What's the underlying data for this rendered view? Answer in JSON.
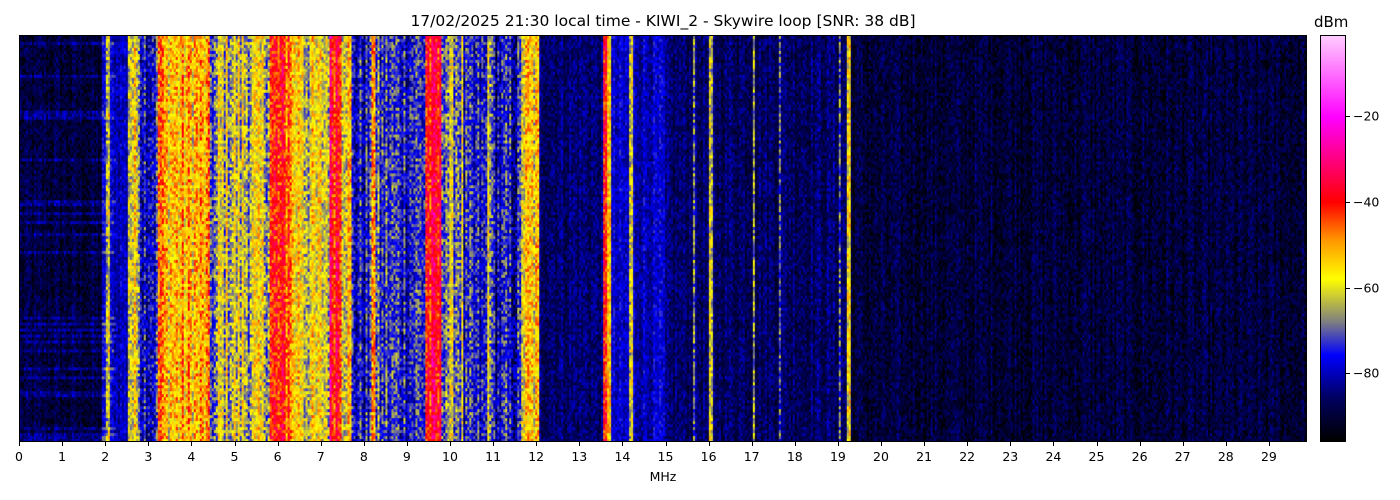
{
  "chart_data": {
    "type": "heatmap",
    "title": "17/02/2025 21:30 local time - KIWI_2 - Skywire loop [SNR: 38 dB]",
    "xlabel": "MHz",
    "ylabel": "",
    "xlim": [
      0,
      29.9
    ],
    "x_ticks": [
      "0",
      "1",
      "2",
      "3",
      "4",
      "5",
      "6",
      "7",
      "8",
      "9",
      "10",
      "11",
      "12",
      "13",
      "14",
      "15",
      "16",
      "17",
      "18",
      "19",
      "20",
      "21",
      "22",
      "23",
      "24",
      "25",
      "26",
      "27",
      "28",
      "29"
    ],
    "colorbar": {
      "label": "dBm",
      "range": [
        -96,
        -1
      ],
      "ticks": [
        -20,
        -40,
        -60,
        -80
      ],
      "tick_labels": [
        "−20",
        "−40",
        "−60",
        "−80"
      ],
      "colormap": [
        {
          "dbm": -96,
          "color": "#000000"
        },
        {
          "dbm": -86,
          "color": "#000060"
        },
        {
          "dbm": -76,
          "color": "#0000ff"
        },
        {
          "dbm": -68,
          "color": "#808080"
        },
        {
          "dbm": -58,
          "color": "#ffff00"
        },
        {
          "dbm": -49,
          "color": "#ff9900"
        },
        {
          "dbm": -40,
          "color": "#ff0000"
        },
        {
          "dbm": -20,
          "color": "#ff00ff"
        },
        {
          "dbm": -1,
          "color": "#ffccff"
        }
      ]
    },
    "band_levels_dbm": [
      {
        "from_mhz": 0,
        "to_mhz": 1.9,
        "dbm": -90
      },
      {
        "from_mhz": 1.9,
        "to_mhz": 2.5,
        "dbm": -80
      },
      {
        "from_mhz": 2.5,
        "to_mhz": 2.8,
        "dbm": -60
      },
      {
        "from_mhz": 2.8,
        "to_mhz": 3.2,
        "dbm": -75
      },
      {
        "from_mhz": 3.2,
        "to_mhz": 3.3,
        "dbm": -45
      },
      {
        "from_mhz": 3.3,
        "to_mhz": 4.4,
        "dbm": -53
      },
      {
        "from_mhz": 4.4,
        "to_mhz": 4.6,
        "dbm": -70
      },
      {
        "from_mhz": 4.6,
        "to_mhz": 5.8,
        "dbm": -62
      },
      {
        "from_mhz": 5.8,
        "to_mhz": 6.3,
        "dbm": -43
      },
      {
        "from_mhz": 6.3,
        "to_mhz": 6.6,
        "dbm": -55
      },
      {
        "from_mhz": 6.6,
        "to_mhz": 7.2,
        "dbm": -60
      },
      {
        "from_mhz": 7.2,
        "to_mhz": 7.45,
        "dbm": -37
      },
      {
        "from_mhz": 7.45,
        "to_mhz": 7.7,
        "dbm": -56
      },
      {
        "from_mhz": 7.7,
        "to_mhz": 8.15,
        "dbm": -77
      },
      {
        "from_mhz": 8.15,
        "to_mhz": 8.25,
        "dbm": -45
      },
      {
        "from_mhz": 8.25,
        "to_mhz": 9.4,
        "dbm": -74
      },
      {
        "from_mhz": 9.4,
        "to_mhz": 9.8,
        "dbm": -40
      },
      {
        "from_mhz": 9.8,
        "to_mhz": 10.3,
        "dbm": -66
      },
      {
        "from_mhz": 10.3,
        "to_mhz": 11.65,
        "dbm": -78
      },
      {
        "from_mhz": 11.65,
        "to_mhz": 12.05,
        "dbm": -57
      },
      {
        "from_mhz": 12.05,
        "to_mhz": 13.55,
        "dbm": -85
      },
      {
        "from_mhz": 13.55,
        "to_mhz": 13.75,
        "dbm": -50
      },
      {
        "from_mhz": 13.75,
        "to_mhz": 15.0,
        "dbm": -80
      },
      {
        "from_mhz": 15.0,
        "to_mhz": 19.2,
        "dbm": -86
      },
      {
        "from_mhz": 19.2,
        "to_mhz": 29.9,
        "dbm": -90
      }
    ],
    "carriers": [
      {
        "mhz": 2.05,
        "dbm": -62
      },
      {
        "mhz": 10.9,
        "dbm": -60
      },
      {
        "mhz": 13.6,
        "dbm": -45
      },
      {
        "mhz": 14.2,
        "dbm": -62
      },
      {
        "mhz": 15.65,
        "dbm": -62
      },
      {
        "mhz": 16.05,
        "dbm": -68
      },
      {
        "mhz": 17.05,
        "dbm": -60
      },
      {
        "mhz": 17.65,
        "dbm": -66
      },
      {
        "mhz": 19.05,
        "dbm": -68
      },
      {
        "mhz": 19.25,
        "dbm": -58
      }
    ]
  }
}
